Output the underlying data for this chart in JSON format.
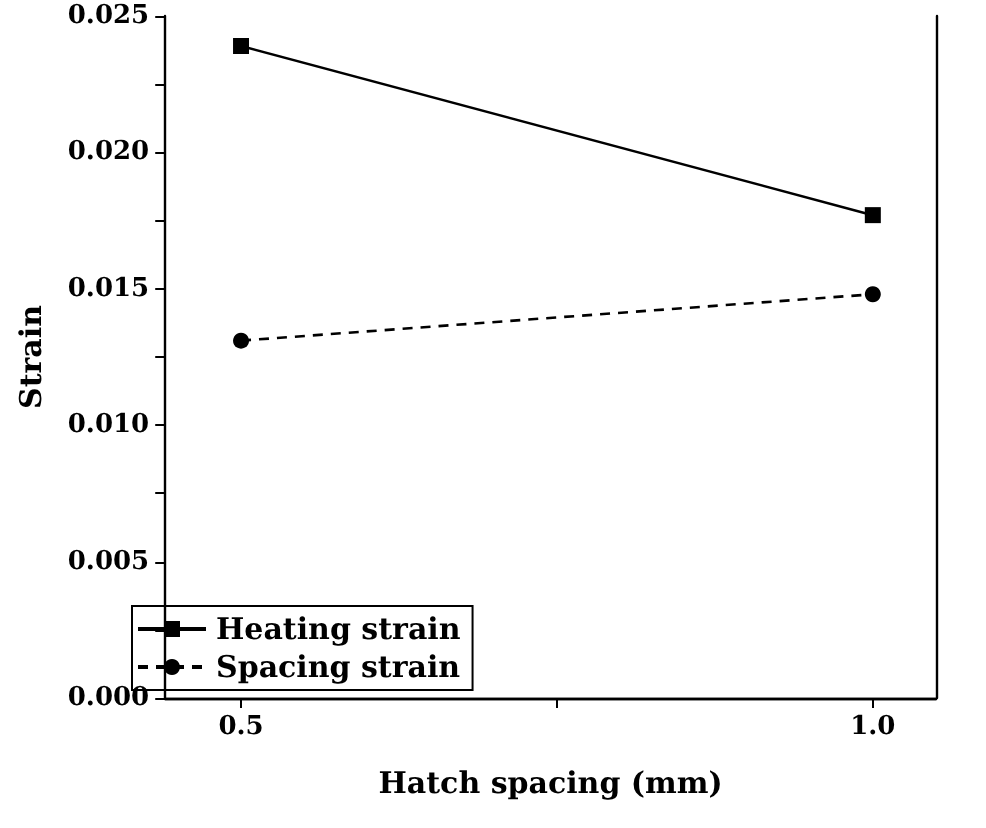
{
  "chart_data": {
    "type": "line",
    "xlabel": "Hatch spacing (mm)",
    "ylabel": "Strain",
    "x": [
      0.5,
      1.0
    ],
    "series": [
      {
        "name": "Heating strain",
        "color": "#000000",
        "values": [
          0.0239,
          0.0177
        ],
        "marker": "square",
        "line_style": "solid"
      },
      {
        "name": "Spacing strain",
        "color": "#000000",
        "values": [
          0.0131,
          0.0148
        ],
        "marker": "circle",
        "line_style": "dashed"
      }
    ],
    "xlim": [
      0.44,
      1.05
    ],
    "xticks": [
      0.5,
      {
        "value": 0.75,
        "label": null
      },
      {
        "value": 1.0,
        "label": "1.0"
      }
    ],
    "ylim": [
      0,
      0.025
    ],
    "yticks": [
      {
        "value": 0,
        "label": "0.000"
      },
      {
        "value": 0.0025,
        "label": null
      },
      {
        "value": 0.005,
        "label": "0.005"
      },
      {
        "value": 0.0075,
        "label": null
      },
      {
        "value": 0.01,
        "label": "0.010"
      },
      {
        "value": 0.0125,
        "label": null
      },
      {
        "value": 0.015,
        "label": "0.015"
      },
      {
        "value": 0.0175,
        "label": null
      },
      {
        "value": 0.02,
        "label": "0.020"
      },
      {
        "value": 0.0225,
        "label": null
      },
      {
        "value": 0.025,
        "label": "0.025"
      }
    ],
    "grid": false,
    "legend": "bottom left"
  }
}
